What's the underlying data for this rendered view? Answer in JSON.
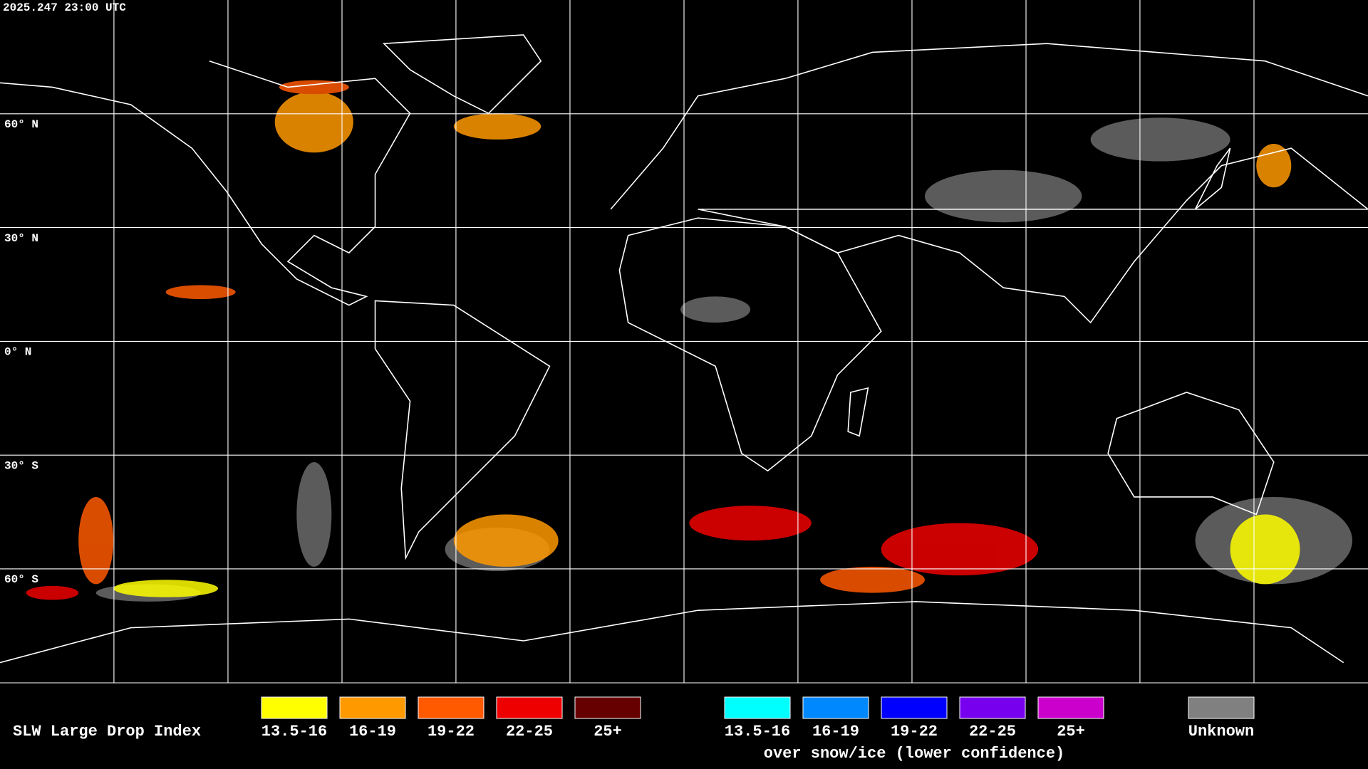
{
  "header": {
    "timestamp": "2025.247 23:00 UTC"
  },
  "map": {
    "latitude_labels": [
      "60° N",
      "30° N",
      "0° N",
      "30° S",
      "60° S"
    ]
  },
  "legend": {
    "title": "SLW Large Drop Index",
    "items": [
      {
        "label": "13.5-16",
        "color": "#ffff00"
      },
      {
        "label": "16-19",
        "color": "#ff9900"
      },
      {
        "label": "19-22",
        "color": "#ff5a00"
      },
      {
        "label": "22-25",
        "color": "#ee0000"
      },
      {
        "label": "25+",
        "color": "#660000"
      }
    ],
    "snow_ice_items": [
      {
        "label": "13.5-16",
        "color": "#00ffff"
      },
      {
        "label": "16-19",
        "color": "#0088ff"
      },
      {
        "label": "19-22",
        "color": "#0000ff"
      },
      {
        "label": "22-25",
        "color": "#7700ee"
      },
      {
        "label": "25+",
        "color": "#cc00cc"
      }
    ],
    "snow_ice_caption": "over snow/ice (lower confidence)",
    "unknown": {
      "label": "Unknown",
      "color": "#808080"
    }
  }
}
